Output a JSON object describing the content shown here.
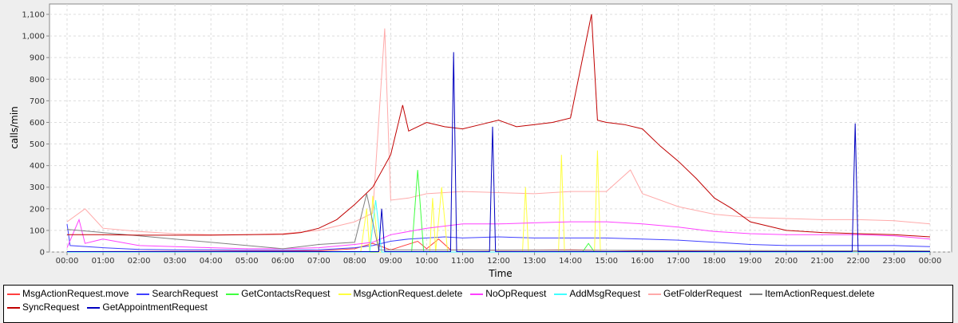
{
  "chart_data": {
    "type": "line",
    "xlabel": "Time",
    "ylabel": "calls/min",
    "ylim": [
      0,
      1100
    ],
    "xlim": [
      "00:00",
      "24:00"
    ],
    "grid": true,
    "legend_position": "bottom",
    "y_ticks": [
      "0",
      "100",
      "200",
      "300",
      "400",
      "500",
      "600",
      "700",
      "800",
      "900",
      "1,000",
      "1,100"
    ],
    "x_ticks": [
      "00:00",
      "01:00",
      "02:00",
      "03:00",
      "04:00",
      "05:00",
      "06:00",
      "07:00",
      "08:00",
      "09:00",
      "10:00",
      "11:00",
      "12:00",
      "13:00",
      "14:00",
      "15:00",
      "16:00",
      "17:00",
      "18:00",
      "19:00",
      "20:00",
      "21:00",
      "22:00",
      "23:00",
      "00:00"
    ],
    "series": [
      {
        "name": "MsgActionRequest.move",
        "color": "#ff4040",
        "points": [
          [
            "00:00",
            2
          ],
          [
            "07:00",
            5
          ],
          [
            "08:00",
            15
          ],
          [
            "08:30",
            40
          ],
          [
            "09:00",
            10
          ],
          [
            "09:45",
            50
          ],
          [
            "10:00",
            15
          ],
          [
            "10:20",
            60
          ],
          [
            "10:40",
            10
          ],
          [
            "12:00",
            8
          ],
          [
            "14:00",
            10
          ],
          [
            "16:00",
            5
          ],
          [
            "18:00",
            3
          ],
          [
            "24:00",
            2
          ]
        ]
      },
      {
        "name": "SearchRequest",
        "color": "#4040ff",
        "points": [
          [
            "00:00",
            130
          ],
          [
            "00:05",
            30
          ],
          [
            "01:00",
            20
          ],
          [
            "02:00",
            12
          ],
          [
            "03:00",
            10
          ],
          [
            "04:00",
            10
          ],
          [
            "05:00",
            8
          ],
          [
            "06:00",
            8
          ],
          [
            "07:00",
            10
          ],
          [
            "08:00",
            20
          ],
          [
            "08:30",
            30
          ],
          [
            "09:00",
            50
          ],
          [
            "09:30",
            60
          ],
          [
            "10:00",
            65
          ],
          [
            "10:30",
            70
          ],
          [
            "11:00",
            65
          ],
          [
            "12:00",
            70
          ],
          [
            "13:00",
            65
          ],
          [
            "14:00",
            65
          ],
          [
            "15:00",
            65
          ],
          [
            "16:00",
            60
          ],
          [
            "17:00",
            55
          ],
          [
            "18:00",
            45
          ],
          [
            "19:00",
            35
          ],
          [
            "20:00",
            30
          ],
          [
            "21:00",
            30
          ],
          [
            "22:00",
            30
          ],
          [
            "23:00",
            30
          ],
          [
            "24:00",
            25
          ]
        ]
      },
      {
        "name": "GetContactsRequest",
        "color": "#40ff40",
        "points": [
          [
            "00:00",
            0
          ],
          [
            "09:35",
            0
          ],
          [
            "09:45",
            380
          ],
          [
            "09:55",
            0
          ],
          [
            "14:20",
            0
          ],
          [
            "14:30",
            40
          ],
          [
            "14:40",
            0
          ],
          [
            "24:00",
            0
          ]
        ]
      },
      {
        "name": "MsgActionRequest.delete",
        "color": "#ffff40",
        "points": [
          [
            "00:00",
            0
          ],
          [
            "08:10",
            0
          ],
          [
            "08:20",
            200
          ],
          [
            "08:25",
            0
          ],
          [
            "08:30",
            260
          ],
          [
            "08:40",
            0
          ],
          [
            "10:05",
            0
          ],
          [
            "10:10",
            250
          ],
          [
            "10:15",
            0
          ],
          [
            "10:25",
            300
          ],
          [
            "10:35",
            0
          ],
          [
            "12:40",
            0
          ],
          [
            "12:45",
            300
          ],
          [
            "12:50",
            0
          ],
          [
            "13:40",
            0
          ],
          [
            "13:45",
            450
          ],
          [
            "13:50",
            0
          ],
          [
            "14:40",
            0
          ],
          [
            "14:45",
            470
          ],
          [
            "14:50",
            0
          ],
          [
            "24:00",
            0
          ]
        ]
      },
      {
        "name": "NoOpRequest",
        "color": "#ff40ff",
        "points": [
          [
            "00:00",
            20
          ],
          [
            "00:20",
            150
          ],
          [
            "00:30",
            40
          ],
          [
            "01:00",
            60
          ],
          [
            "02:00",
            30
          ],
          [
            "03:00",
            25
          ],
          [
            "04:00",
            20
          ],
          [
            "05:00",
            15
          ],
          [
            "06:00",
            15
          ],
          [
            "07:00",
            20
          ],
          [
            "08:00",
            35
          ],
          [
            "08:30",
            45
          ],
          [
            "09:00",
            80
          ],
          [
            "09:30",
            95
          ],
          [
            "10:00",
            110
          ],
          [
            "10:30",
            120
          ],
          [
            "11:00",
            130
          ],
          [
            "12:00",
            130
          ],
          [
            "13:00",
            135
          ],
          [
            "14:00",
            140
          ],
          [
            "15:00",
            140
          ],
          [
            "16:00",
            130
          ],
          [
            "17:00",
            115
          ],
          [
            "18:00",
            95
          ],
          [
            "19:00",
            85
          ],
          [
            "20:00",
            80
          ],
          [
            "21:00",
            80
          ],
          [
            "22:00",
            80
          ],
          [
            "23:00",
            75
          ],
          [
            "24:00",
            60
          ]
        ]
      },
      {
        "name": "AddMsgRequest",
        "color": "#40ffff",
        "points": [
          [
            "00:00",
            0
          ],
          [
            "08:25",
            0
          ],
          [
            "08:35",
            240
          ],
          [
            "08:45",
            0
          ],
          [
            "24:00",
            0
          ]
        ]
      },
      {
        "name": "GetFolderRequest",
        "color": "#ffaaaa",
        "points": [
          [
            "00:00",
            140
          ],
          [
            "00:30",
            200
          ],
          [
            "01:00",
            110
          ],
          [
            "02:00",
            95
          ],
          [
            "03:00",
            85
          ],
          [
            "04:00",
            80
          ],
          [
            "05:00",
            80
          ],
          [
            "06:00",
            85
          ],
          [
            "07:00",
            100
          ],
          [
            "08:00",
            140
          ],
          [
            "08:30",
            180
          ],
          [
            "08:50",
            1035
          ],
          [
            "09:00",
            240
          ],
          [
            "09:30",
            250
          ],
          [
            "10:00",
            270
          ],
          [
            "11:00",
            280
          ],
          [
            "12:00",
            275
          ],
          [
            "13:00",
            270
          ],
          [
            "14:00",
            280
          ],
          [
            "15:00",
            280
          ],
          [
            "15:40",
            380
          ],
          [
            "16:00",
            270
          ],
          [
            "17:00",
            210
          ],
          [
            "18:00",
            175
          ],
          [
            "19:00",
            160
          ],
          [
            "20:00",
            155
          ],
          [
            "21:00",
            150
          ],
          [
            "22:00",
            150
          ],
          [
            "23:00",
            145
          ],
          [
            "24:00",
            130
          ]
        ]
      },
      {
        "name": "ItemActionRequest.delete",
        "color": "#808080",
        "points": [
          [
            "00:00",
            105
          ],
          [
            "06:00",
            15
          ],
          [
            "07:00",
            35
          ],
          [
            "08:00",
            45
          ],
          [
            "08:20",
            270
          ],
          [
            "08:40",
            10
          ],
          [
            "24:00",
            5
          ]
        ]
      },
      {
        "name": "SyncRequest",
        "color": "#c00000",
        "points": [
          [
            "00:00",
            80
          ],
          [
            "01:00",
            80
          ],
          [
            "02:00",
            78
          ],
          [
            "03:00",
            78
          ],
          [
            "04:00",
            78
          ],
          [
            "05:00",
            80
          ],
          [
            "06:00",
            82
          ],
          [
            "06:30",
            90
          ],
          [
            "07:00",
            110
          ],
          [
            "07:30",
            150
          ],
          [
            "08:00",
            220
          ],
          [
            "08:30",
            300
          ],
          [
            "09:00",
            450
          ],
          [
            "09:20",
            680
          ],
          [
            "09:30",
            560
          ],
          [
            "10:00",
            600
          ],
          [
            "10:30",
            580
          ],
          [
            "11:00",
            570
          ],
          [
            "11:30",
            590
          ],
          [
            "12:00",
            610
          ],
          [
            "12:30",
            580
          ],
          [
            "13:00",
            590
          ],
          [
            "13:30",
            600
          ],
          [
            "14:00",
            620
          ],
          [
            "14:35",
            1100
          ],
          [
            "14:45",
            610
          ],
          [
            "15:00",
            600
          ],
          [
            "15:30",
            590
          ],
          [
            "16:00",
            570
          ],
          [
            "16:30",
            490
          ],
          [
            "17:00",
            420
          ],
          [
            "17:30",
            340
          ],
          [
            "18:00",
            250
          ],
          [
            "18:30",
            200
          ],
          [
            "19:00",
            140
          ],
          [
            "19:30",
            120
          ],
          [
            "20:00",
            100
          ],
          [
            "20:30",
            95
          ],
          [
            "21:00",
            90
          ],
          [
            "21:30",
            88
          ],
          [
            "22:00",
            85
          ],
          [
            "23:00",
            80
          ],
          [
            "24:00",
            70
          ]
        ]
      },
      {
        "name": "GetAppointmentRequest",
        "color": "#0000c0",
        "points": [
          [
            "00:00",
            2
          ],
          [
            "08:40",
            2
          ],
          [
            "08:45",
            200
          ],
          [
            "08:50",
            2
          ],
          [
            "10:40",
            2
          ],
          [
            "10:45",
            925
          ],
          [
            "10:50",
            2
          ],
          [
            "11:45",
            2
          ],
          [
            "11:50",
            580
          ],
          [
            "11:55",
            2
          ],
          [
            "21:50",
            2
          ],
          [
            "21:55",
            595
          ],
          [
            "22:00",
            2
          ],
          [
            "24:00",
            2
          ]
        ]
      }
    ]
  }
}
